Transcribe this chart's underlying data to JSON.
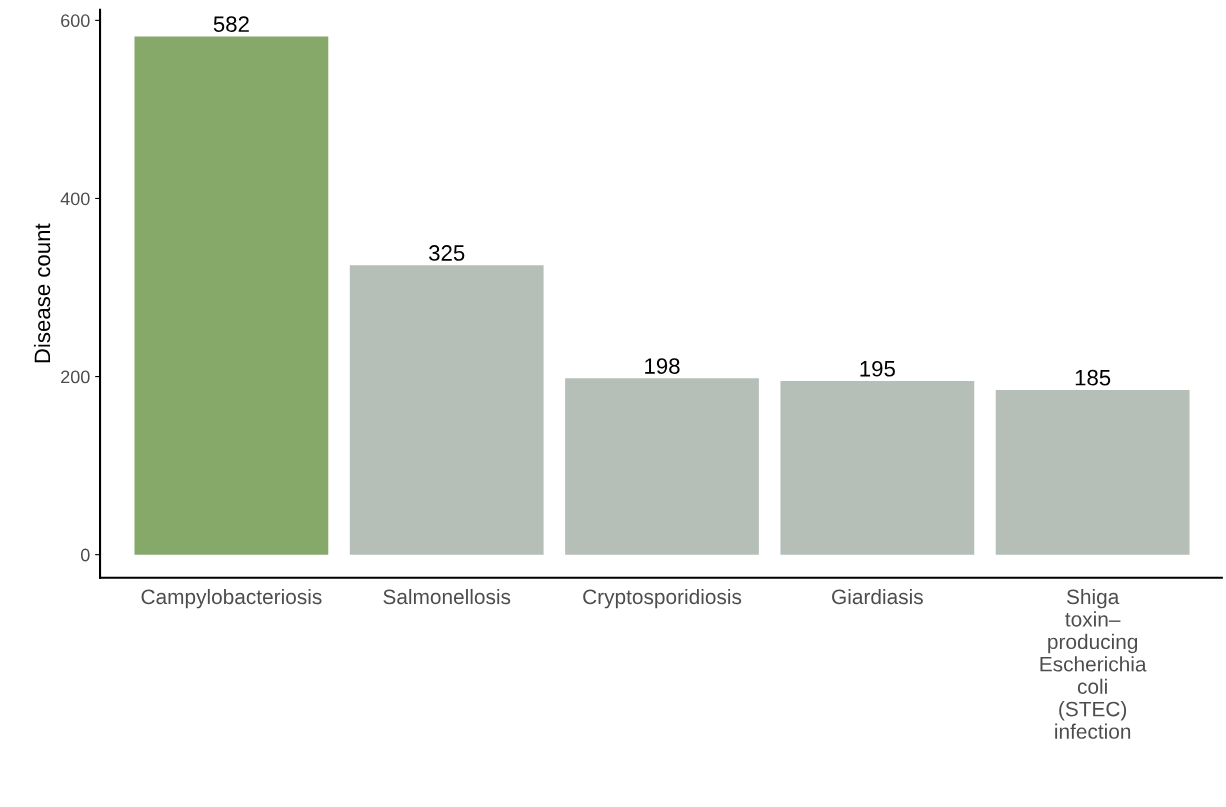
{
  "chart_data": {
    "type": "bar",
    "ylabel": "Disease count",
    "categories": [
      "Campylobacteriosis",
      "Salmonellosis",
      "Cryptosporidiosis",
      "Giardiasis",
      "Shiga\ntoxin–\nproducing\nEscherichia\ncoli\n(STEC)\ninfection"
    ],
    "values": [
      582,
      325,
      198,
      195,
      185
    ],
    "colors": [
      "#86a96a",
      "#b5bfb8",
      "#b5bfb8",
      "#b5bfb8",
      "#b5bfb8"
    ],
    "data_labels": true,
    "ylim": [
      -26,
      612
    ],
    "yticks": [
      0,
      200,
      400,
      600
    ],
    "grid": false,
    "legend": false
  }
}
